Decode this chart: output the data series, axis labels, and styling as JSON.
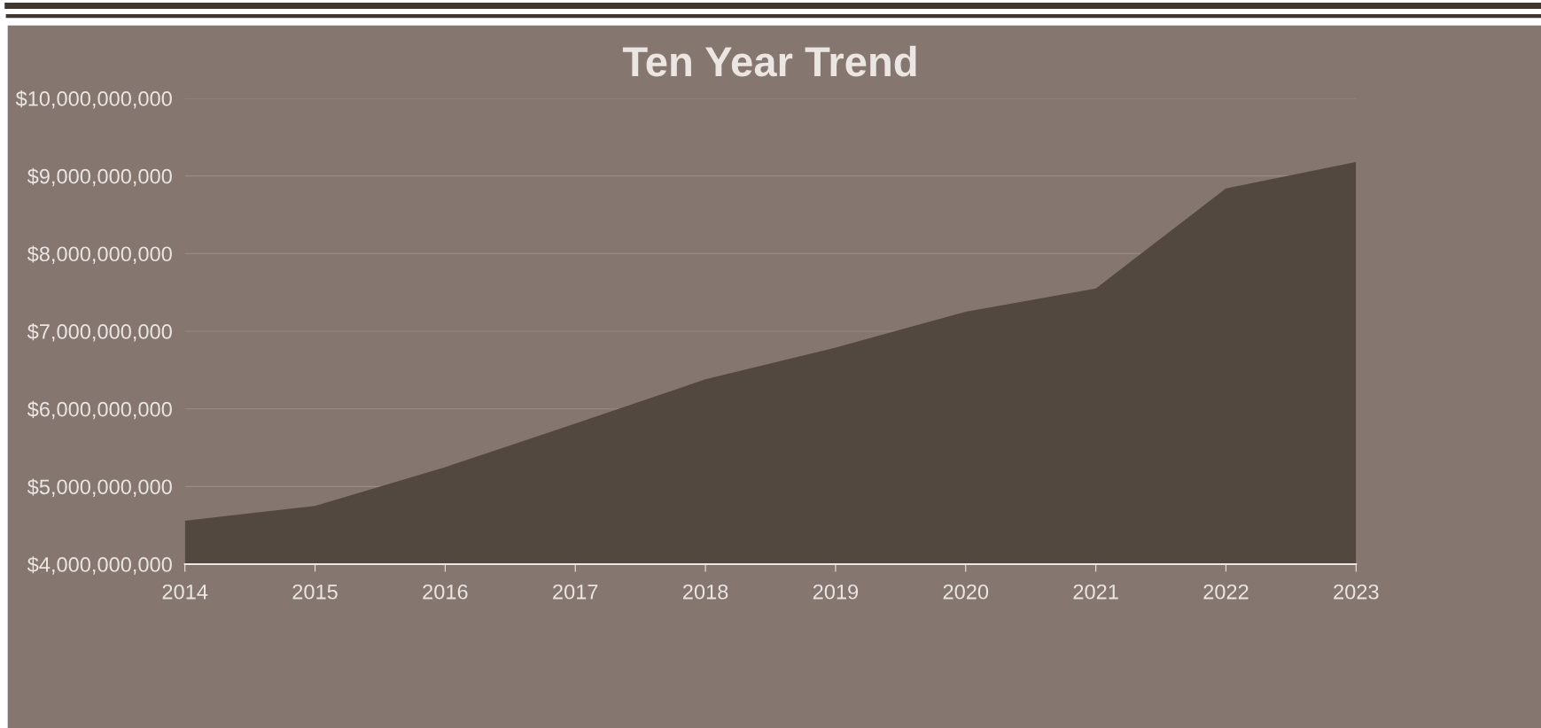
{
  "chart_data": {
    "type": "area",
    "title": "Ten Year Trend",
    "x": [
      2014,
      2015,
      2016,
      2017,
      2018,
      2019,
      2020,
      2021,
      2022,
      2023
    ],
    "series": [
      {
        "color": "#534840",
        "values": [
          4560000000,
          4750000000,
          5250000000,
          5810000000,
          6380000000,
          6790000000,
          7250000000,
          7550000000,
          8840000000,
          9180000000
        ]
      }
    ],
    "xlim": [
      2014,
      2023
    ],
    "xticks": [
      2014,
      2015,
      2016,
      2017,
      2018,
      2019,
      2020,
      2021,
      2022,
      2023
    ],
    "ylim": [
      4000000000,
      10000000000
    ],
    "yticks": [
      {
        "value": 4000000000,
        "label": "$4,000,000,000"
      },
      {
        "value": 5000000000,
        "label": "$5,000,000,000"
      },
      {
        "value": 6000000000,
        "label": "$6,000,000,000"
      },
      {
        "value": 7000000000,
        "label": "$7,000,000,000"
      },
      {
        "value": 8000000000,
        "label": "$8,000,000,000"
      },
      {
        "value": 9000000000,
        "label": "$9,000,000,000"
      },
      {
        "value": 10000000000,
        "label": "$10,000,000,000"
      }
    ],
    "grid": "y"
  }
}
